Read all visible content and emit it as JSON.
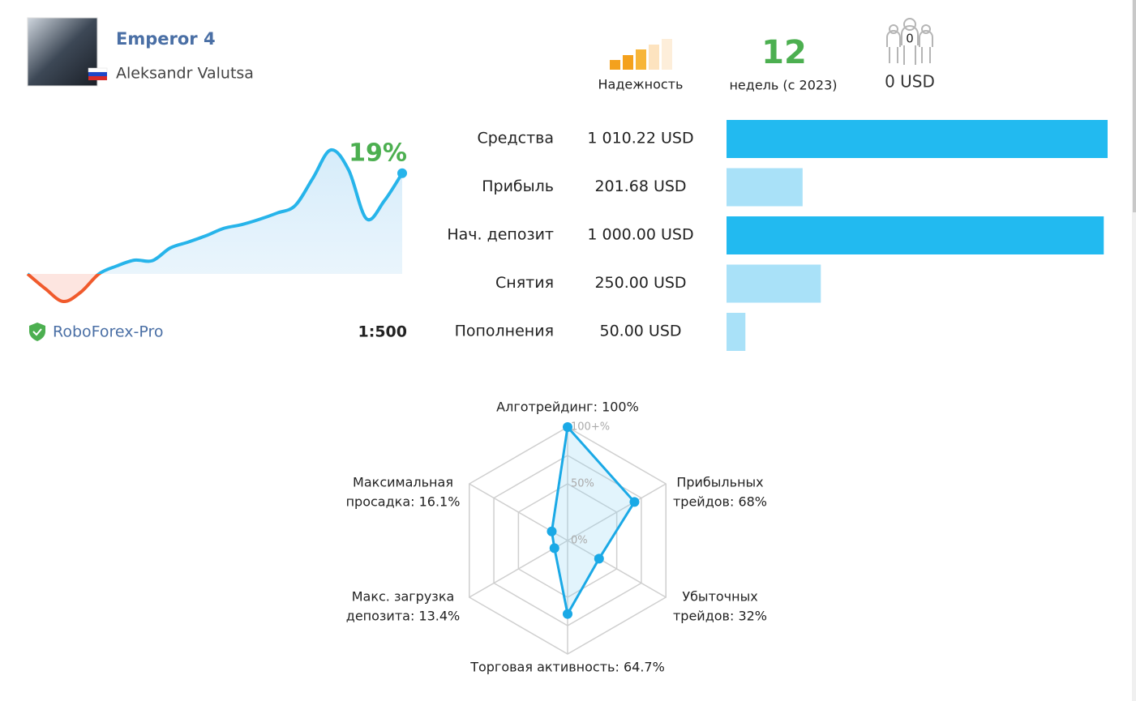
{
  "header": {
    "title": "Emperor 4",
    "author": "Aleksandr Valutsa"
  },
  "stats": {
    "reliability_label": "Надежность",
    "weeks": 12,
    "weeks_label": "недель (с 2023)",
    "subscribers": 0,
    "subscribers_funds": "0 USD"
  },
  "broker": {
    "name": "RoboForex-Pro",
    "leverage": "1:500"
  },
  "chart_data": [
    {
      "type": "line",
      "color": "#27b4ea",
      "negative_color": "#f05a2c",
      "values": [
        0,
        -2.8,
        -5.2,
        -3.4,
        0,
        1.5,
        2.6,
        2.5,
        4.9,
        6.0,
        7.2,
        8.6,
        9.3,
        10.3,
        11.5,
        12.9,
        18.1,
        23.4,
        19.6,
        10.4,
        13.8,
        19
      ],
      "value_labels": [
        null,
        null,
        null,
        null,
        null,
        null,
        null,
        null,
        null,
        null,
        null,
        null,
        null,
        null,
        null,
        null,
        null,
        null,
        null,
        null,
        null,
        "19%"
      ]
    },
    {
      "type": "bar",
      "orientation": "horizontal",
      "categories": [
        "Средства",
        "Прибыль",
        "Нач. депозит",
        "Снятия",
        "Пополнения"
      ],
      "values": [
        1010.22,
        201.68,
        1000,
        250,
        50
      ],
      "value_labels": [
        "1 010.22 USD",
        "201.68 USD",
        "1 000.00 USD",
        "250.00 USD",
        "50.00 USD"
      ],
      "colors": [
        "#22baf0",
        "#a9e1f8",
        "#22baf0",
        "#a9e1f8",
        "#a9e1f8"
      ]
    },
    {
      "type": "radar",
      "color": "#1aa9e6",
      "rlim": [
        0,
        100
      ],
      "rticks": [
        {
          "value": 0,
          "label": "0%"
        },
        {
          "value": 50,
          "label": "50%"
        },
        {
          "value": 75,
          "label": null
        },
        {
          "value": 100,
          "label": "100+%"
        }
      ],
      "axes": [
        {
          "label_lines": [
            "Алготрейдинг: 100%"
          ],
          "value": 100
        },
        {
          "label_lines": [
            "Прибыльных",
            "трейдов: 68%"
          ],
          "value": 68
        },
        {
          "label_lines": [
            "Убыточных",
            "трейдов: 32%"
          ],
          "value": 32
        },
        {
          "label_lines": [
            "Торговая активность: 64.7%"
          ],
          "value": 64.7
        },
        {
          "label_lines": [
            "Макс. загрузка",
            "депозита: 13.4%"
          ],
          "value": 13.4
        },
        {
          "label_lines": [
            "Максимальная",
            "просадка: 16.1%"
          ],
          "value": 16.1
        }
      ]
    }
  ]
}
